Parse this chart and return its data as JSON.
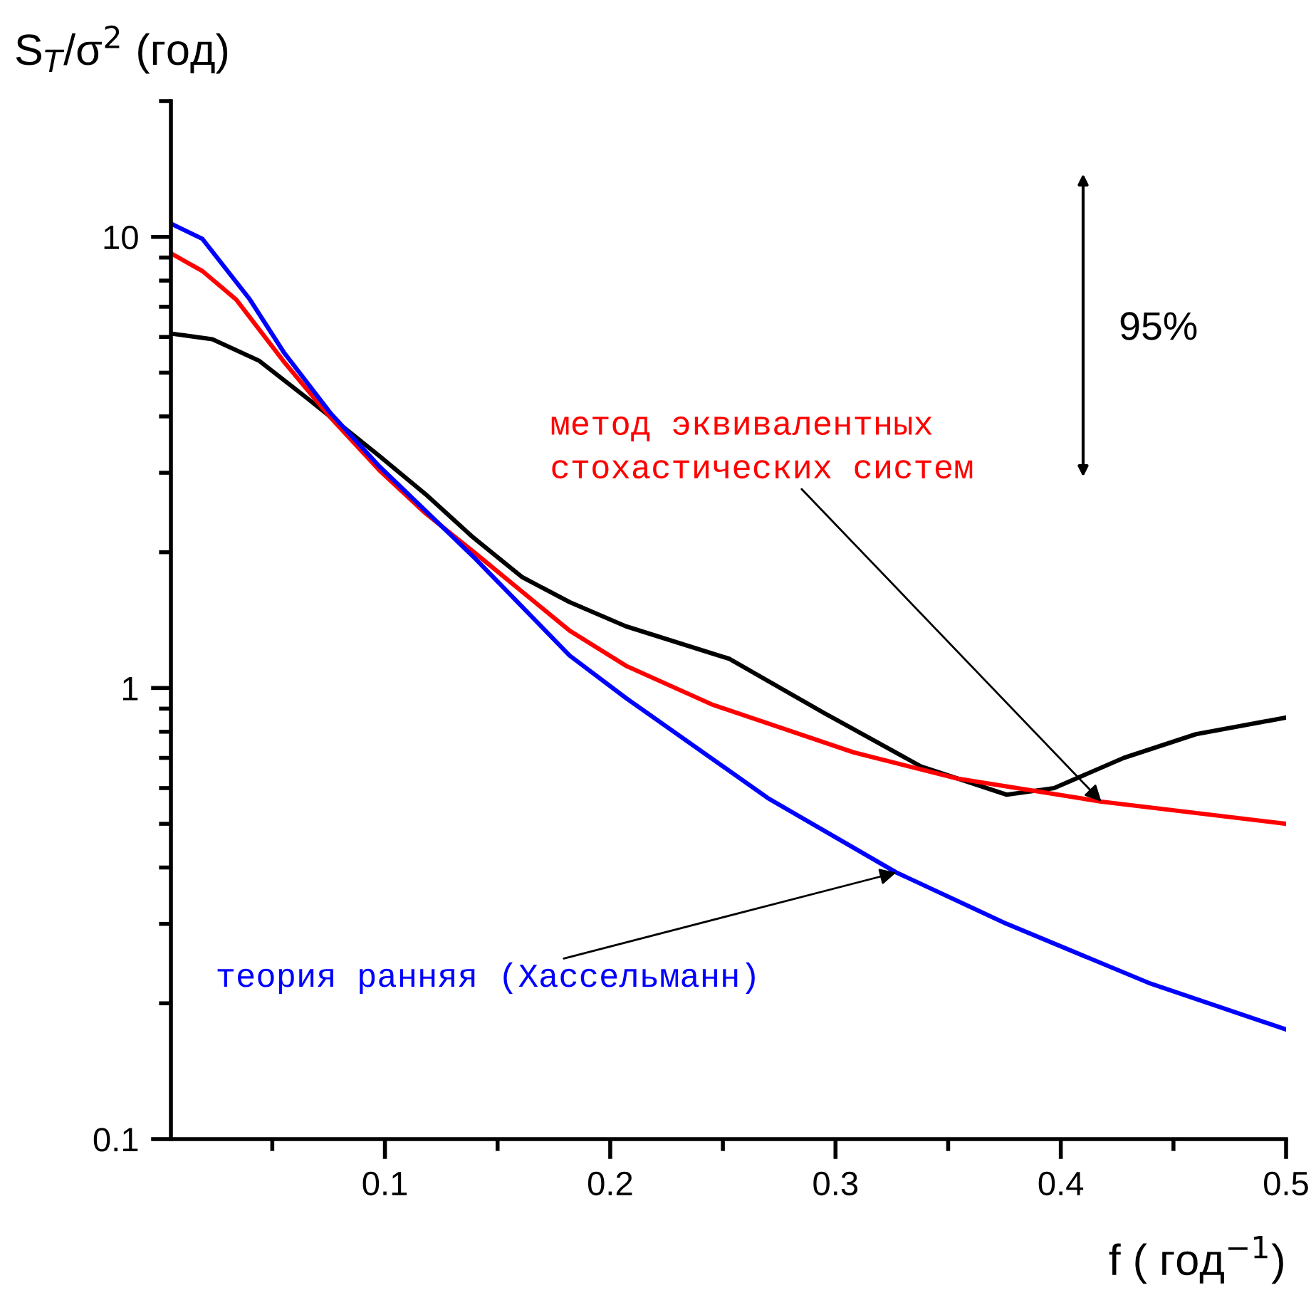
{
  "chart_data": {
    "type": "line",
    "xlabel": "f ( год$^{−1}$)",
    "ylabel": "S$_{T}$/σ$^{2}$ (год)",
    "log": "y",
    "xlim": [
      0.005,
      0.5
    ],
    "ylim": [
      0.1,
      20
    ],
    "xticks": [
      0.1,
      0.2,
      0.3,
      0.4,
      0.5
    ],
    "yticks": [
      0.1,
      1,
      10
    ],
    "grid": false,
    "legend": false,
    "marker": "none",
    "line_style": "solid",
    "series": [
      {
        "color": "#000000",
        "x": [
          0.0056,
          0.0234,
          0.044,
          0.066,
          0.0975,
          0.118,
          0.139,
          0.161,
          0.182,
          0.207,
          0.253,
          0.295,
          0.338,
          0.376,
          0.397,
          0.428,
          0.46,
          0.5
        ],
        "values": [
          6.1,
          5.93,
          5.32,
          4.37,
          3.27,
          2.69,
          2.16,
          1.76,
          1.55,
          1.37,
          1.16,
          0.88,
          0.67,
          0.58,
          0.6,
          0.7,
          0.79,
          0.86
        ]
      },
      {
        "name": "метод эквивалентных\nстохастических систем",
        "color": "#ff0000",
        "x": [
          0.0056,
          0.019,
          0.034,
          0.055,
          0.076,
          0.0975,
          0.118,
          0.139,
          0.182,
          0.207,
          0.245,
          0.308,
          0.354,
          0.418,
          0.5
        ],
        "values": [
          9.16,
          8.4,
          7.26,
          5.3,
          3.97,
          3.04,
          2.44,
          2.01,
          1.34,
          1.12,
          0.92,
          0.72,
          0.63,
          0.56,
          0.5
        ]
      },
      {
        "name": "теория ранняя (Хассельманн)",
        "color": "#0000ff",
        "x": [
          0.005,
          0.019,
          0.04,
          0.0551,
          0.076,
          0.0975,
          0.139,
          0.182,
          0.207,
          0.27,
          0.327,
          0.376,
          0.439,
          0.5
        ],
        "values": [
          10.7,
          9.9,
          7.27,
          5.55,
          4.06,
          3.1,
          1.96,
          1.18,
          0.95,
          0.57,
          0.39,
          0.3,
          0.222,
          0.175
        ]
      }
    ],
    "annotations": [
      "95%"
    ]
  }
}
